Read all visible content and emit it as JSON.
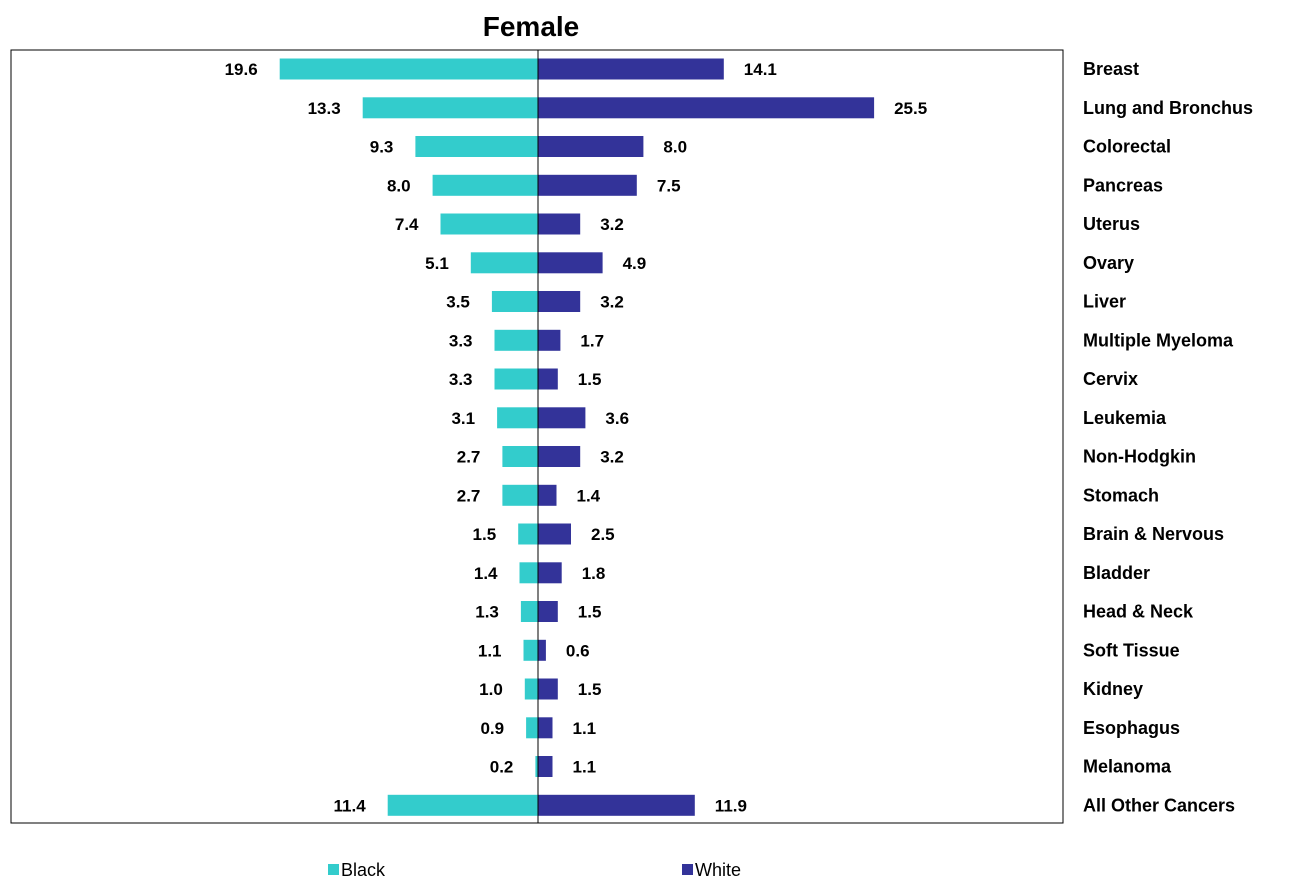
{
  "chart_data": {
    "type": "bar",
    "orientation": "horizontal-diverging",
    "title": "Female",
    "categories": [
      "Breast",
      "Lung and Bronchus",
      "Colorectal",
      "Pancreas",
      "Uterus",
      "Ovary",
      "Liver",
      "Multiple Myeloma",
      "Cervix",
      "Leukemia",
      "Non-Hodgkin",
      "Stomach",
      "Brain & Nervous",
      "Bladder",
      "Head & Neck",
      "Soft Tissue",
      "Kidney",
      "Esophagus",
      "Melanoma",
      "All Other Cancers"
    ],
    "series": [
      {
        "name": "Black",
        "color": "#33CCCC",
        "direction": "left",
        "values": [
          19.6,
          13.3,
          9.3,
          8.0,
          7.4,
          5.1,
          3.5,
          3.3,
          3.3,
          3.1,
          2.7,
          2.7,
          1.5,
          1.4,
          1.3,
          1.1,
          1.0,
          0.9,
          0.2,
          11.4
        ],
        "labels": [
          "19.6",
          "13.3",
          "9.3",
          "8.0",
          "7.4",
          "5.1",
          "3.5",
          "3.3",
          "3.3",
          "3.1",
          "2.7",
          "2.7",
          "1.5",
          "1.4",
          "1.3",
          "1.1",
          "1.0",
          "0.9",
          "0.2",
          "11.4"
        ]
      },
      {
        "name": "White",
        "color": "#333399",
        "direction": "right",
        "values": [
          14.1,
          25.5,
          8.0,
          7.5,
          3.2,
          4.9,
          3.2,
          1.7,
          1.5,
          3.6,
          3.2,
          1.4,
          2.5,
          1.8,
          1.5,
          0.6,
          1.5,
          1.1,
          1.1,
          11.9
        ],
        "labels": [
          "14.1",
          "25.5",
          "8.0",
          "7.5",
          "3.2",
          "4.9",
          "3.2",
          "1.7",
          "1.5",
          "3.6",
          "3.2",
          "1.4",
          "2.5",
          "1.8",
          "1.5",
          "0.6",
          "1.5",
          "1.1",
          "1.1",
          "11.9"
        ]
      }
    ],
    "xlabel": "",
    "ylabel": "",
    "xlim": [
      -20,
      40
    ],
    "grid": false,
    "legend_position": "bottom"
  }
}
